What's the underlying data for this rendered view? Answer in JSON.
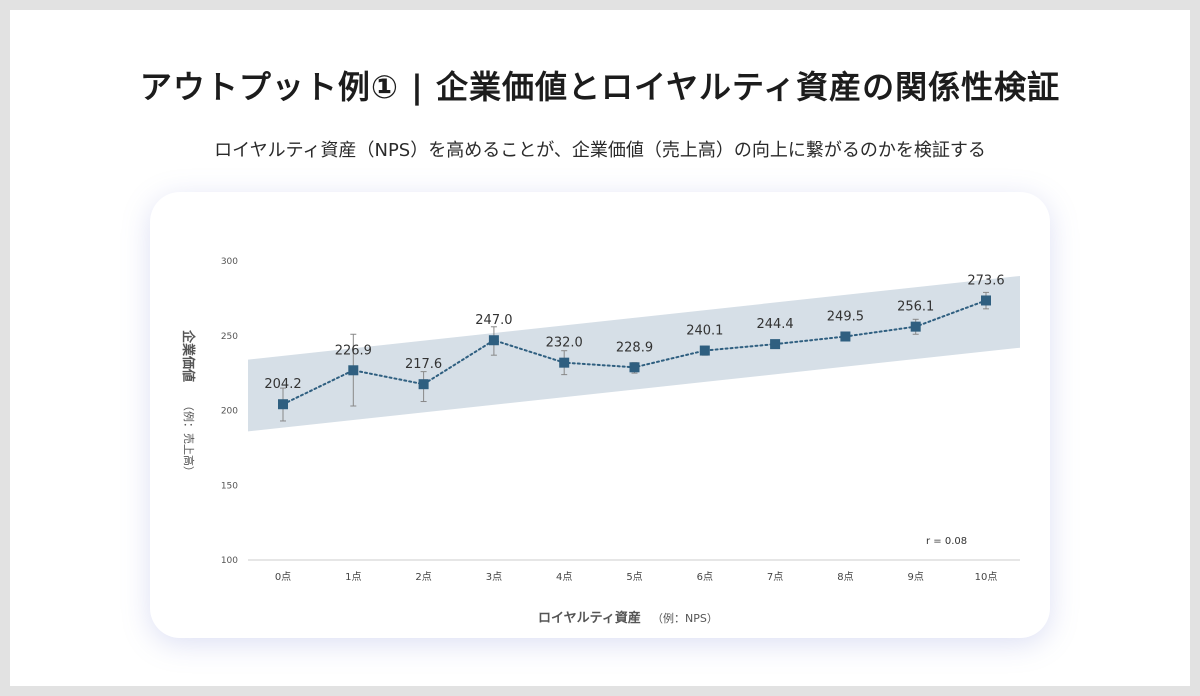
{
  "header": {
    "title": "アウトプット例① | 企業価値とロイヤルティ資産の関係性検証",
    "subtitle": "ロイヤルティ資産（NPS）を高めることが、企業価値（売上高）の向上に繋がるのかを検証する"
  },
  "chart_data": {
    "type": "line",
    "categories": [
      "0点",
      "1点",
      "2点",
      "3点",
      "4点",
      "5点",
      "6点",
      "7点",
      "8点",
      "9点",
      "10点"
    ],
    "values": [
      204.2,
      226.9,
      217.6,
      247.0,
      232.0,
      228.9,
      240.1,
      244.4,
      249.5,
      256.1,
      273.6
    ],
    "value_labels": [
      "204.2",
      "226.9",
      "217.6",
      "247.0",
      "232.0",
      "228.9",
      "240.1",
      "244.4",
      "249.5",
      "256.1",
      "273.6"
    ],
    "error_low": [
      193,
      203,
      206,
      237,
      224,
      225,
      237,
      242,
      247,
      251,
      268
    ],
    "error_high": [
      215,
      251,
      226,
      256,
      240,
      232,
      243,
      247,
      252,
      261,
      279
    ],
    "trend_band": {
      "start": [
        186,
        234
      ],
      "end": [
        242,
        290
      ]
    },
    "ylim": [
      100,
      300
    ],
    "yticks": [
      "100",
      "150",
      "200",
      "250",
      "300"
    ],
    "ylabel_main": "企業価値",
    "ylabel_sub": "（例：売上高）",
    "xlabel_main": "ロイヤルティ資産",
    "xlabel_sub": "（例：NPS）",
    "annotation": "r = 0.08",
    "colors": {
      "marker": "#2f5f80",
      "line": "#2f5f80",
      "band": "#d6dfe7",
      "axis": "#cccccc",
      "error": "#888888"
    }
  }
}
